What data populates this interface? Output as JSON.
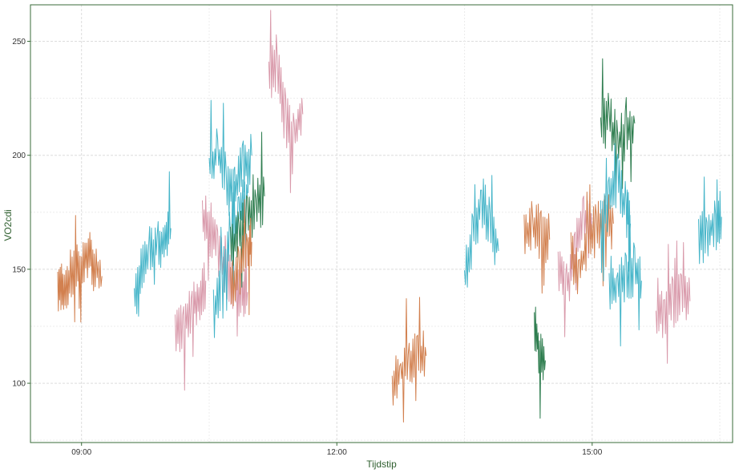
{
  "chart_data": {
    "type": "line",
    "title": "",
    "xlabel": "Tijdstip",
    "ylabel": "VO2cdi",
    "x_unit": "hours of day",
    "xlim": [
      8.4,
      16.65
    ],
    "ylim": [
      74,
      266
    ],
    "x_ticks": [
      {
        "value": 9,
        "label": "09:00"
      },
      {
        "value": 12,
        "label": "12:00"
      },
      {
        "value": 15,
        "label": "15:00"
      }
    ],
    "y_ticks": [
      {
        "value": 100,
        "label": "100"
      },
      {
        "value": 150,
        "label": "150"
      },
      {
        "value": 200,
        "label": "200"
      },
      {
        "value": 250,
        "label": "250"
      }
    ],
    "grid": true,
    "legend": "none",
    "colors": {
      "orange": "#d2804f",
      "cyan": "#46b5c9",
      "pink": "#d99aab",
      "green": "#2e7d4f",
      "frame": "#3a6b3a"
    },
    "series": [
      {
        "color": "orange",
        "x": [
          8.72,
          8.78,
          8.85,
          8.93,
          9.0,
          9.08,
          9.15,
          9.24
        ],
        "y": [
          140,
          143,
          145,
          152,
          150,
          156,
          152,
          147
        ]
      },
      {
        "color": "cyan",
        "x": [
          9.62,
          9.7,
          9.8,
          9.9,
          9.98,
          10.05
        ],
        "y": [
          135,
          150,
          157,
          161,
          164,
          168
        ]
      },
      {
        "color": "pink",
        "x": [
          10.1,
          10.2,
          10.3,
          10.38,
          10.46
        ],
        "y": [
          123,
          127,
          132,
          137,
          145
        ]
      },
      {
        "color": "pink",
        "x": [
          10.42,
          10.5,
          10.6,
          10.7,
          10.8,
          10.88,
          10.95
        ],
        "y": [
          175,
          165,
          160,
          148,
          140,
          137,
          140
        ]
      },
      {
        "color": "cyan",
        "x": [
          10.5,
          10.6,
          10.7,
          10.8,
          10.9,
          11.0
        ],
        "y": [
          195,
          202,
          190,
          185,
          195,
          200
        ]
      },
      {
        "color": "cyan",
        "x": [
          10.55,
          10.65,
          10.75,
          10.85,
          10.95
        ],
        "y": [
          130,
          145,
          160,
          175,
          182
        ]
      },
      {
        "color": "green",
        "x": [
          10.75,
          10.85,
          10.95,
          11.05,
          11.15
        ],
        "y": [
          158,
          165,
          172,
          178,
          182
        ]
      },
      {
        "color": "orange",
        "x": [
          10.75,
          10.85,
          10.95,
          11.0
        ],
        "y": [
          140,
          150,
          158,
          162
        ]
      },
      {
        "color": "pink",
        "x": [
          11.2,
          11.3,
          11.4,
          11.5,
          11.6
        ],
        "y": [
          235,
          240,
          215,
          210,
          218
        ]
      },
      {
        "color": "orange",
        "x": [
          12.65,
          12.75,
          12.85,
          12.95,
          13.05
        ],
        "y": [
          98,
          105,
          110,
          113,
          112
        ]
      },
      {
        "color": "cyan",
        "x": [
          13.5,
          13.6,
          13.7,
          13.8,
          13.9
        ],
        "y": [
          145,
          165,
          180,
          170,
          158
        ]
      },
      {
        "color": "orange",
        "x": [
          14.2,
          14.3,
          14.4,
          14.5
        ],
        "y": [
          165,
          168,
          166,
          163
        ]
      },
      {
        "color": "green",
        "x": [
          14.32,
          14.38,
          14.45
        ],
        "y": [
          124,
          115,
          110
        ]
      },
      {
        "color": "pink",
        "x": [
          14.6,
          14.7,
          14.8,
          14.9,
          15.0
        ],
        "y": [
          150,
          142,
          158,
          172,
          165
        ]
      },
      {
        "color": "orange",
        "x": [
          14.75,
          14.85,
          14.95,
          15.05,
          15.15,
          15.25
        ],
        "y": [
          155,
          148,
          162,
          168,
          172,
          170
        ]
      },
      {
        "color": "green",
        "x": [
          15.1,
          15.2,
          15.3,
          15.4,
          15.5
        ],
        "y": [
          212,
          216,
          205,
          210,
          214
        ]
      },
      {
        "color": "cyan",
        "x": [
          15.1,
          15.2,
          15.3,
          15.4,
          15.45
        ],
        "y": [
          170,
          180,
          190,
          175,
          170
        ]
      },
      {
        "color": "cyan",
        "x": [
          15.2,
          15.3,
          15.4,
          15.5,
          15.58
        ],
        "y": [
          145,
          142,
          148,
          150,
          145
        ]
      },
      {
        "color": "pink",
        "x": [
          15.75,
          15.85,
          15.95,
          16.05,
          16.15
        ],
        "y": [
          128,
          133,
          135,
          138,
          136
        ]
      },
      {
        "color": "cyan",
        "x": [
          16.25,
          16.35,
          16.45,
          16.52
        ],
        "y": [
          162,
          167,
          170,
          173
        ]
      }
    ]
  }
}
